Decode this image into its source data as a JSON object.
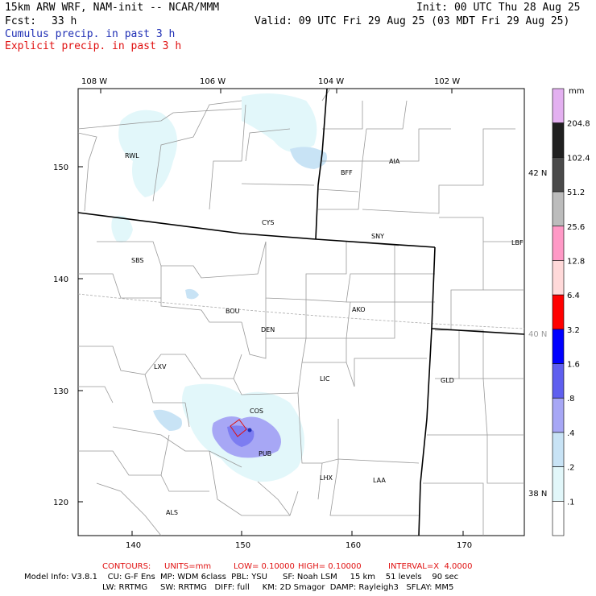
{
  "header": {
    "model": "15km ARW WRF, NAM-init -- NCAR/MMM",
    "init": "Init: 00 UTC Thu 28 Aug 25",
    "fcst_label": "Fcst:",
    "fcst_value": "33 h",
    "valid": "Valid: 09 UTC Fri 29 Aug 25 (03 MDT Fri 29 Aug 25)",
    "legend_cumulus": "Cumulus precip. in past 3 h",
    "legend_explicit": "Explicit precip. in past 3 h"
  },
  "map": {
    "top_lon_labels": [
      "108 W",
      "106 W",
      "104 W",
      "102 W"
    ],
    "right_lat_labels": [
      "42 N",
      "40 N",
      "38 N"
    ],
    "left_grid_labels": [
      "150",
      "140",
      "130",
      "120"
    ],
    "bottom_grid_labels": [
      "140",
      "150",
      "160",
      "170"
    ],
    "cities": [
      "RWL",
      "BFF",
      "AIA",
      "CYS",
      "SNY",
      "LBF",
      "SBS",
      "BOU",
      "AKO",
      "DEN",
      "LXV",
      "LIC",
      "GLD",
      "COS",
      "PUB",
      "LHX",
      "LAA",
      "ALS"
    ]
  },
  "colorbar": {
    "unit": "mm",
    "levels": [
      "204.8",
      "102.4",
      "51.2",
      "25.6",
      "12.8",
      "6.4",
      "3.2",
      "1.6",
      ".8",
      ".4",
      ".2",
      ".1"
    ],
    "colors": [
      "#e3b0f0",
      "#202020",
      "#4a4a4a",
      "#bcbcbc",
      "#ff99c6",
      "#ffd9d9",
      "#ff0000",
      "#0000ff",
      "#5f5fef",
      "#a7a7f5",
      "#c8e3f5",
      "#e2f7fa",
      "#ffffff"
    ]
  },
  "footer": {
    "contours_label": "CONTOURS:",
    "units": "UNITS=mm",
    "low": "LOW= 0.10000",
    "high": "HIGH= 0.10000",
    "interval": "INTERVAL=X  4.0000",
    "line1": "Model Info: V3.8.1    CU: G-F Ens  MP: WDM 6class  PBL: YSU      SF: Noah LSM     15 km    51 levels    90 sec",
    "line2": "LW: RRTMG     SW: RRTMG   DIFF: full     KM: 2D Smagor  DAMP: Rayleigh3   SFLAY: MM5"
  }
}
